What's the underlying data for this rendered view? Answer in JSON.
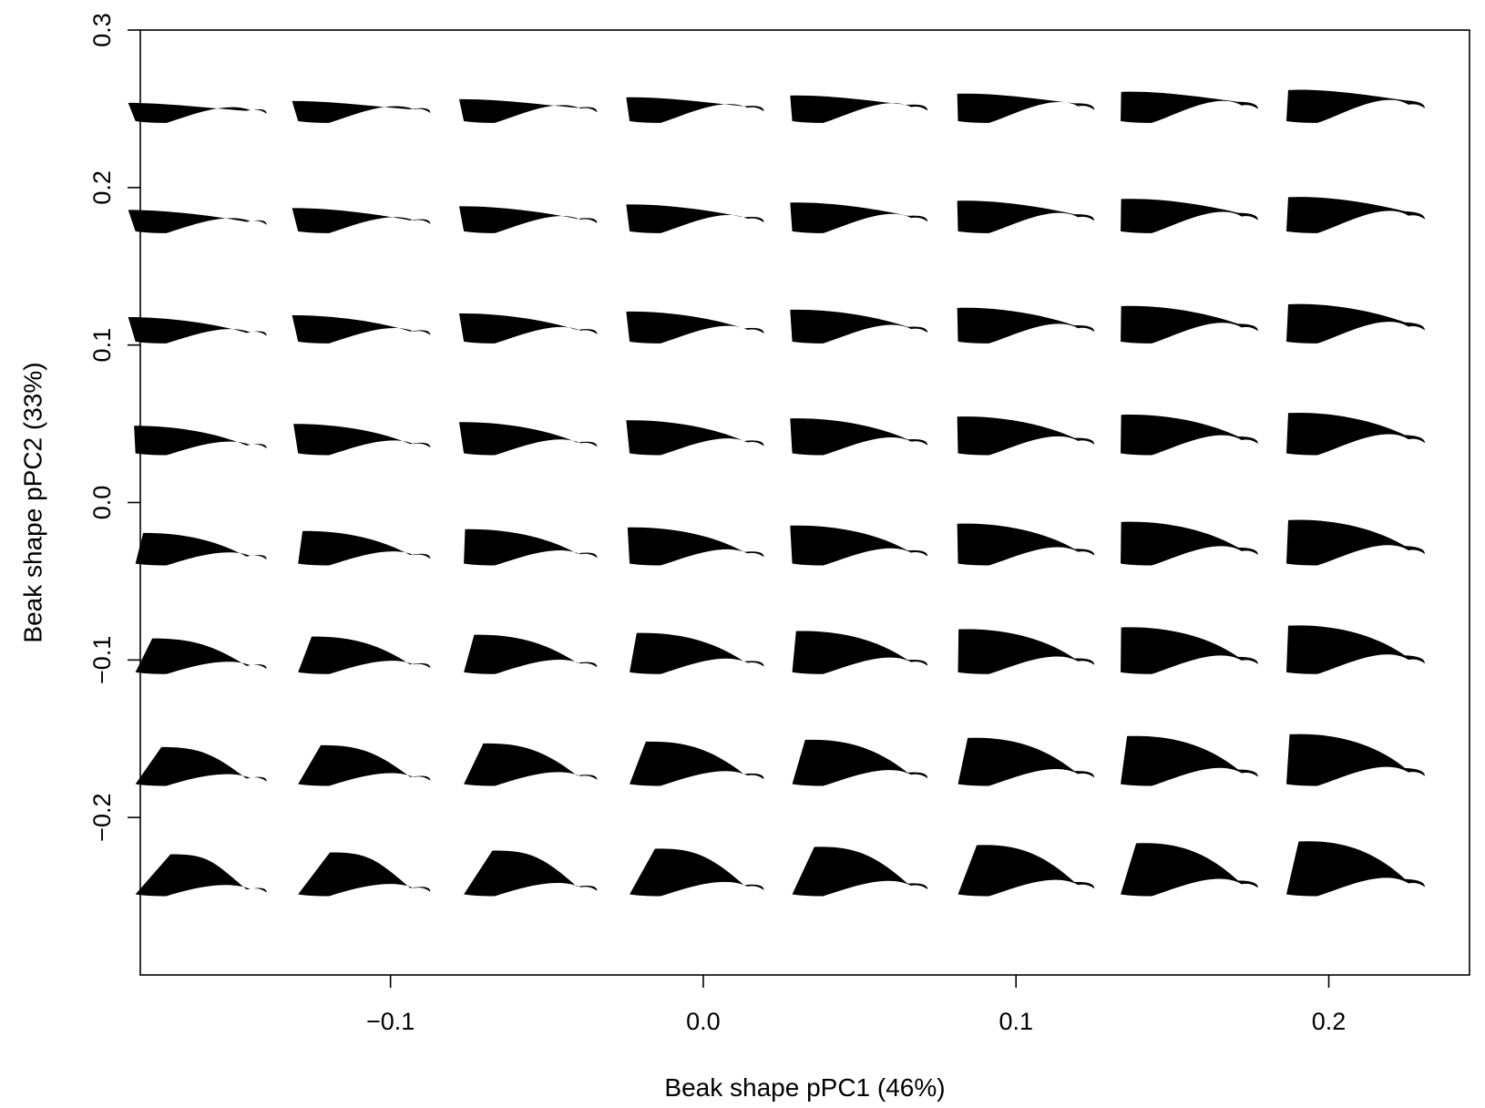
{
  "chart_data": {
    "type": "scatter",
    "title": "",
    "xlabel": "Beak shape pPC1 (46%)",
    "ylabel": "Beak shape pPC2 (33%)",
    "xlim": [
      -0.18,
      0.245
    ],
    "ylim": [
      -0.3,
      0.3
    ],
    "xticks": [
      -0.1,
      0.0,
      0.1,
      0.2
    ],
    "xtick_labels": [
      "−0.1",
      "0.0",
      "0.1",
      "0.2"
    ],
    "yticks": [
      -0.2,
      -0.1,
      0.0,
      0.1,
      0.2,
      0.3
    ],
    "ytick_labels": [
      "−0.2",
      "−0.1",
      "0.0",
      "0.1",
      "0.2",
      "0.3"
    ],
    "grid": false,
    "legend": "none",
    "marker": "beak-shape-silhouette",
    "marker_color": "#000000",
    "grid_x": [
      -0.16,
      -0.108,
      -0.055,
      -0.002,
      0.05,
      0.103,
      0.155,
      0.208
    ],
    "grid_y": [
      0.248,
      0.178,
      0.108,
      0.037,
      -0.033,
      -0.102,
      -0.173,
      -0.243
    ]
  }
}
